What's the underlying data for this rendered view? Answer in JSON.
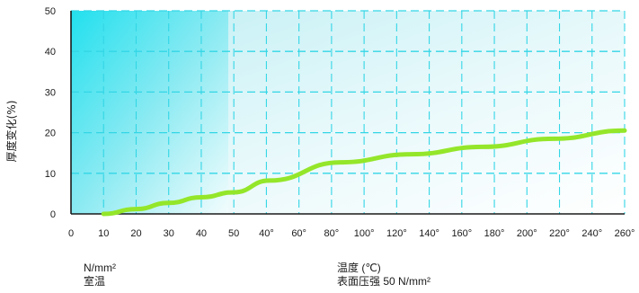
{
  "chart_data": {
    "type": "line",
    "title": "",
    "ylabel": "厚度变化(%)",
    "ylim": [
      0,
      50
    ],
    "yticks": [
      0,
      10,
      20,
      30,
      40,
      50
    ],
    "grid": true,
    "colors": {
      "line": "#94e62a",
      "grid": "#33d6e6",
      "axis": "#1a1a1a",
      "room_temp_fill": "#28e3ee"
    },
    "x_tick_labels": [
      "0",
      "10",
      "20",
      "30",
      "40",
      "50",
      "40°",
      "60°",
      "80°",
      "100°",
      "120°",
      "140°",
      "160°",
      "180°",
      "200°",
      "220°",
      "240°",
      "260°"
    ],
    "left_segment": {
      "label": "N/mm²",
      "sublabel": "室温",
      "x_range": [
        0,
        50
      ],
      "unit": "N/mm²"
    },
    "right_segment": {
      "label": "温度 (℃)",
      "sublabel": "表面压强 50 N/mm²",
      "x_range": [
        40,
        260
      ],
      "unit": "℃"
    },
    "series": [
      {
        "values": [
          {
            "segment": "left",
            "x": 10,
            "y": 0
          },
          {
            "segment": "left",
            "x": 20,
            "y": 1.2
          },
          {
            "segment": "left",
            "x": 30,
            "y": 2.7
          },
          {
            "segment": "left",
            "x": 40,
            "y": 4.1
          },
          {
            "segment": "left",
            "x": 50,
            "y": 5.3
          },
          {
            "segment": "right",
            "x": 60,
            "y": 8.2
          },
          {
            "segment": "right",
            "x": 100,
            "y": 12.7
          },
          {
            "segment": "right",
            "x": 140,
            "y": 14.7
          },
          {
            "segment": "right",
            "x": 180,
            "y": 16.5
          },
          {
            "segment": "right",
            "x": 220,
            "y": 18.5
          },
          {
            "segment": "right",
            "x": 260,
            "y": 20.5
          }
        ]
      }
    ]
  },
  "footer": {
    "left_unit": "N/mm²",
    "left_condition": "室温",
    "right_unit": "温度 (℃)",
    "right_condition": "表面压强 50 N/mm²"
  }
}
